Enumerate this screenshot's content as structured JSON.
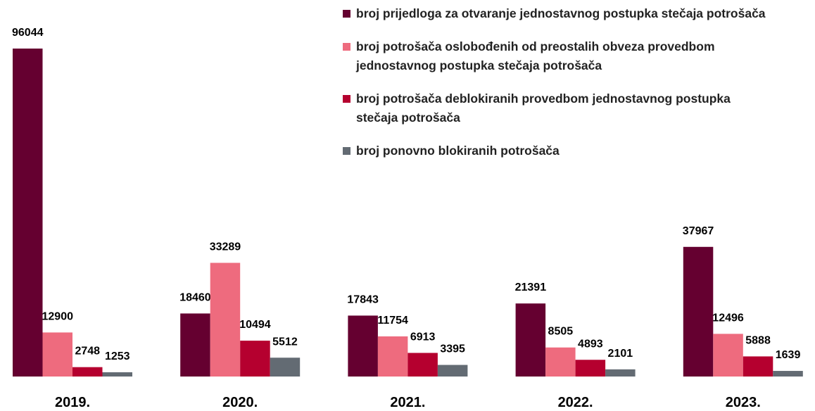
{
  "chart_data": {
    "type": "bar",
    "categories": [
      "2019.",
      "2020.",
      "2021.",
      "2022.",
      "2023."
    ],
    "series": [
      {
        "name": "broj prijedloga za otvaranje jednostavnog postupka stečaja potrošača",
        "color": "#650030",
        "values": [
          96044,
          18460,
          17843,
          21391,
          37967
        ]
      },
      {
        "name": "broj potrošača oslobođenih od preostalih obveza provedbom jednostavnog postupka stečaja potrošača",
        "color": "#ee6b7e",
        "values": [
          12900,
          33289,
          11754,
          8505,
          12496
        ]
      },
      {
        "name": "broj potrošača deblokiranih provedbom jednostavnog postupka stečaja potrošača",
        "color": "#b5002f",
        "values": [
          2748,
          10494,
          6913,
          4893,
          5888
        ]
      },
      {
        "name": "broj ponovno blokiranih potrošača",
        "color": "#636b73",
        "values": [
          1253,
          5512,
          3395,
          2101,
          1639
        ]
      }
    ],
    "legend": "top-right"
  }
}
